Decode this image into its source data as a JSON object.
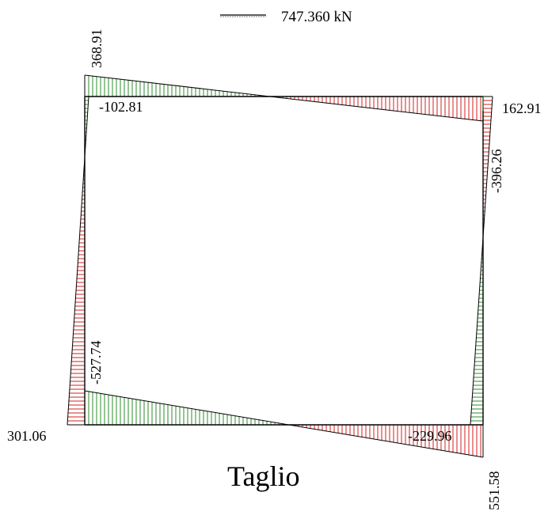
{
  "title": "Taglio",
  "legend": {
    "label": "747.360 kN"
  },
  "values": {
    "top_left": "368.91",
    "top_left_inner": "-102.81",
    "top_right": "162.91",
    "right_top": "-396.26",
    "left_bottom": "-527.74",
    "bottom_left": "301.06",
    "bottom_right_inner": "-229.96",
    "bottom_right": "551.58"
  },
  "colors": {
    "positive": "#2e8b2e",
    "negative": "#d02020",
    "frame": "#000000"
  }
}
